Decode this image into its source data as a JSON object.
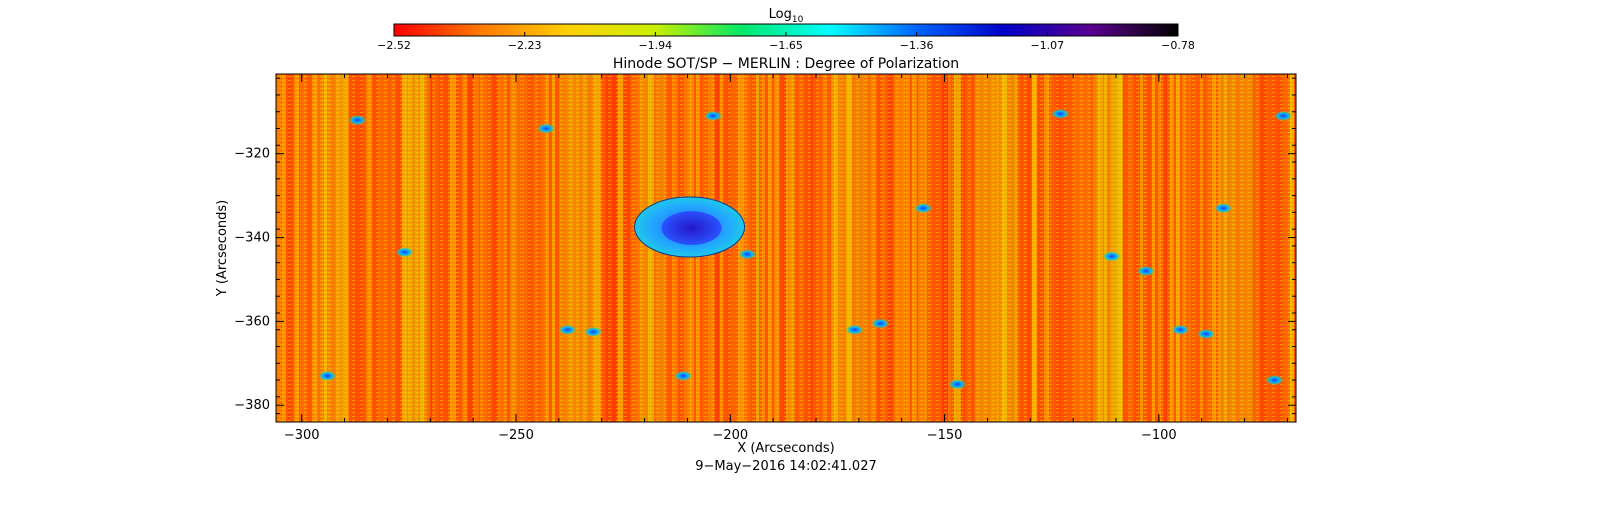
{
  "chart_data": {
    "type": "heatmap",
    "title": "Hinode SOT/SP − MERLIN : Degree of Polarization",
    "xlabel": "X (Arcseconds)",
    "ylabel": "Y (Arcseconds)",
    "footer": "9−May−2016 14:02:41.027",
    "colorbar": {
      "label_base": "Log",
      "label_sub": "10",
      "ticks": [
        "−2.52",
        "−2.23",
        "−1.94",
        "−1.65",
        "−1.36",
        "−1.07",
        "−0.78"
      ],
      "range": [
        -2.52,
        -0.78
      ],
      "colors": [
        "#ff0000",
        "#ff7a00",
        "#ffd000",
        "#c8f000",
        "#00e86a",
        "#00ffff",
        "#0064ff",
        "#0000c8",
        "#5a0090",
        "#000000"
      ]
    },
    "x_ticks": [
      "−300",
      "−250",
      "−200",
      "−150",
      "−100"
    ],
    "x_tick_values": [
      -300,
      -250,
      -200,
      -150,
      -100
    ],
    "y_ticks": [
      "−320",
      "−340",
      "−360",
      "−380"
    ],
    "y_tick_values": [
      -320,
      -340,
      -360,
      -380
    ],
    "xlim": [
      -306,
      -68
    ],
    "ylim": [
      -384,
      -301
    ],
    "grid": false,
    "image_description_values": {
      "background_log10_range": [
        -2.52,
        -1.9
      ],
      "sunspot": {
        "center": [
          -209.5,
          -337.5
        ],
        "umbra_log10": -1.15,
        "penumbra_log10": -1.45
      },
      "network_patches": [
        {
          "x": -287,
          "y": -312,
          "v": -1.45
        },
        {
          "x": -276,
          "y": -343.5,
          "v": -1.25
        },
        {
          "x": -294,
          "y": -373,
          "v": -1.45
        },
        {
          "x": -238,
          "y": -362,
          "v": -1.4
        },
        {
          "x": -232,
          "y": -362.5,
          "v": -1.35
        },
        {
          "x": -243,
          "y": -314,
          "v": -1.5
        },
        {
          "x": -204,
          "y": -311,
          "v": -1.4
        },
        {
          "x": -211,
          "y": -373,
          "v": -1.4
        },
        {
          "x": -196,
          "y": -344,
          "v": -1.45
        },
        {
          "x": -171,
          "y": -362,
          "v": -1.4
        },
        {
          "x": -165,
          "y": -360.5,
          "v": -1.35
        },
        {
          "x": -155,
          "y": -333,
          "v": -1.45
        },
        {
          "x": -147,
          "y": -375,
          "v": -1.5
        },
        {
          "x": -123,
          "y": -310.5,
          "v": -1.45
        },
        {
          "x": -111,
          "y": -344.5,
          "v": -1.4
        },
        {
          "x": -103,
          "y": -348,
          "v": -1.5
        },
        {
          "x": -95,
          "y": -362,
          "v": -1.4
        },
        {
          "x": -89,
          "y": -363,
          "v": -1.35
        },
        {
          "x": -85,
          "y": -333,
          "v": -1.5
        },
        {
          "x": -73,
          "y": -374,
          "v": -1.45
        },
        {
          "x": -71,
          "y": -311,
          "v": -1.55
        }
      ]
    }
  }
}
